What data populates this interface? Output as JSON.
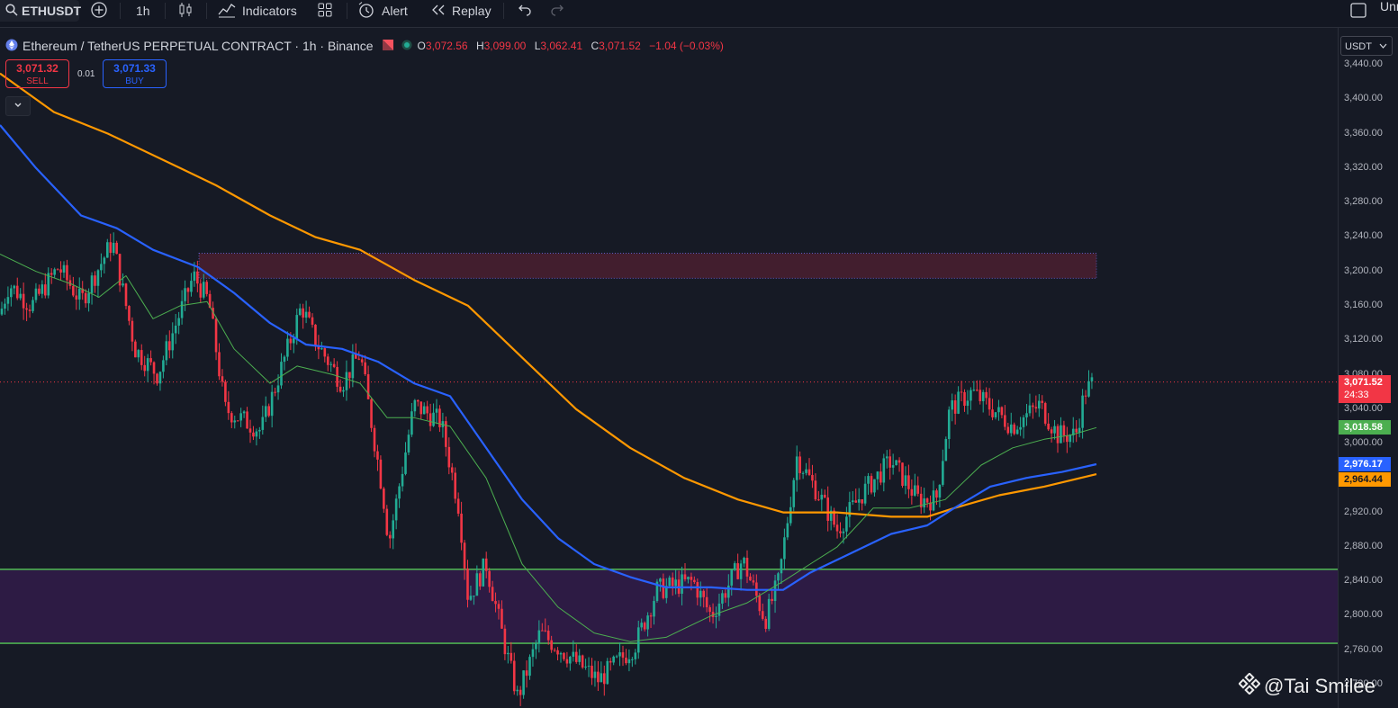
{
  "toolbar": {
    "symbol": "ETHUSDT",
    "interval": "1h",
    "indicators": "Indicators",
    "alert": "Alert",
    "replay": "Replay",
    "right_cut": "Unn"
  },
  "legend": {
    "title": "Ethereum / TetherUS PERPETUAL CONTRACT · 1h · Binance",
    "o_label": "O",
    "o": "3,072.56",
    "h_label": "H",
    "h": "3,099.00",
    "l_label": "L",
    "l": "3,062.41",
    "c_label": "C",
    "c": "3,071.52",
    "change": "−1.04 (−0.03%)"
  },
  "trade": {
    "sell_price": "3,071.32",
    "sell_label": "SELL",
    "spread": "0.01",
    "buy_price": "3,071.33",
    "buy_label": "BUY"
  },
  "axis": {
    "currency": "USDT",
    "ticks": [
      "3,440.00",
      "3,400.00",
      "3,360.00",
      "3,320.00",
      "3,280.00",
      "3,240.00",
      "3,200.00",
      "3,160.00",
      "3,120.00",
      "3,080.00",
      "3,040.00",
      "3,000.00",
      "2,920.00",
      "2,880.00",
      "2,840.00",
      "2,800.00",
      "2,760.00",
      "2,720.00"
    ]
  },
  "tags": {
    "last_price": "3,071.52",
    "countdown": "24:33",
    "ma_short": "3,018.58",
    "ma_mid": "2,976.17",
    "ma_long": "2,964.44"
  },
  "watermark": "@Tai Smilee",
  "colors": {
    "bg": "#161a25",
    "up": "#22ab94",
    "down": "#f23645",
    "ma_long": "#ff9800",
    "ma_mid": "#2962ff",
    "ma_short": "#4caf50",
    "resistance_zone": "#4a2030",
    "support_zone": "#2d1b44"
  }
}
